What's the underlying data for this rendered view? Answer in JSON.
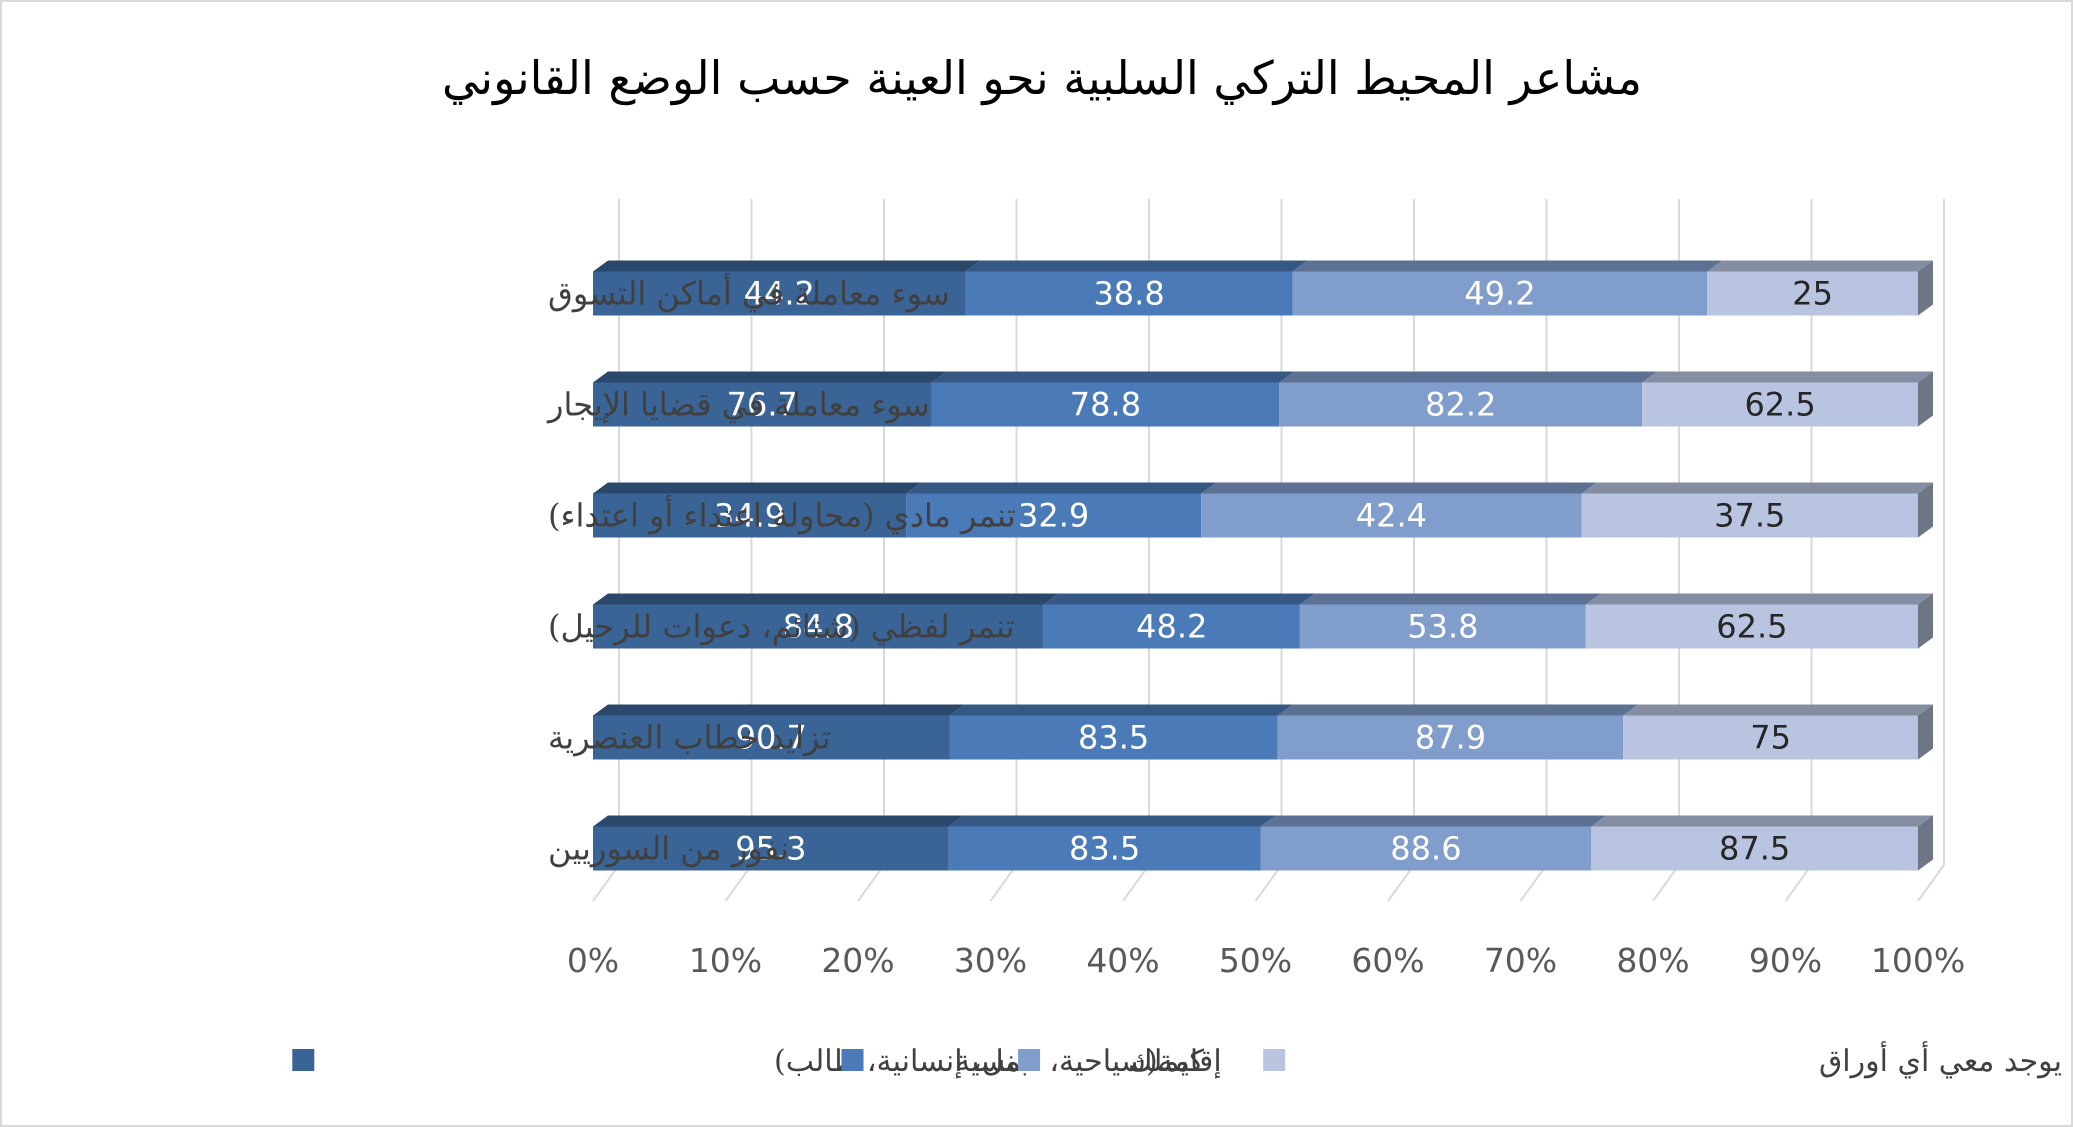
{
  "chart_data": {
    "type": "bar",
    "orientation": "horizontal",
    "stacking": "percent",
    "title": "مشاعر المحيط التركي السلبية نحو العينة حسب الوضع القانوني",
    "categories": [
      "سوء معاملة في أماكن التسوق",
      "سوء معاملة في قضايا الإيجار",
      "تنمر مادي (محاولة اعتداء أو اعتداء)",
      "تنمر لفظي (شتائم، دعوات للرحيل)",
      "تزايد خطاب العنصرية",
      "نفور من السوريين"
    ],
    "series": [
      {
        "name": "إقامة(سياحية، عمل، إنسانية، طالب)",
        "values": [
          44.2,
          76.7,
          34.9,
          84.8,
          90.7,
          95.3
        ],
        "color": "#3b6496"
      },
      {
        "name": "جنسية",
        "values": [
          38.8,
          78.8,
          32.9,
          48.2,
          83.5,
          83.5
        ],
        "color": "#4a7ab7"
      },
      {
        "name": "كيملك",
        "values": [
          49.2,
          82.2,
          42.4,
          53.8,
          87.9,
          88.6
        ],
        "color": "#809dcc"
      },
      {
        "name": "وضعي غير نظامي / لا يوجد معي أي أوراق",
        "values": [
          25,
          62.5,
          37.5,
          62.5,
          75,
          87.5
        ],
        "color": "#b8c4e0"
      }
    ],
    "xlim": [
      0,
      100
    ],
    "x_ticks": [
      "0%",
      "10%",
      "20%",
      "30%",
      "40%",
      "50%",
      "60%",
      "70%",
      "80%",
      "90%",
      "100%"
    ],
    "grid": true,
    "legend_position": "bottom",
    "three_d": true
  }
}
